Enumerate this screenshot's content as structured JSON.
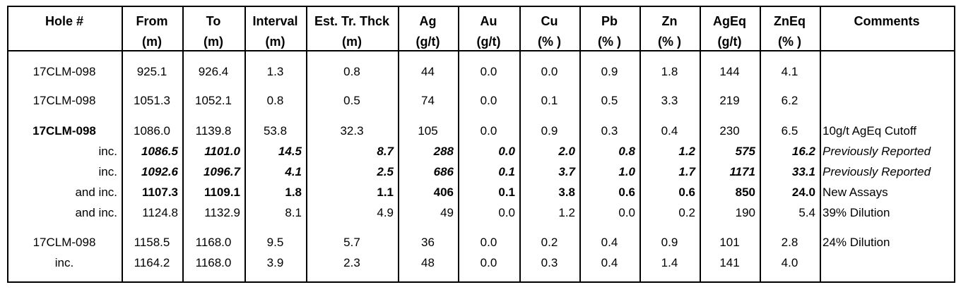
{
  "table": {
    "header": [
      [
        "Hole #"
      ],
      [
        "From",
        "(m)"
      ],
      [
        "To",
        "(m)"
      ],
      [
        "Interval",
        "(m)"
      ],
      [
        "Est. Tr. Thck",
        "(m)"
      ],
      [
        "Ag",
        "(g/t)"
      ],
      [
        "Au",
        "(g/t)"
      ],
      [
        "Cu",
        "(% )"
      ],
      [
        "Pb",
        "(% )"
      ],
      [
        "Zn",
        "(% )"
      ],
      [
        "AgEq",
        "(g/t)"
      ],
      [
        "ZnEq",
        "(% )"
      ],
      [
        "Comments"
      ]
    ],
    "rows": [
      [
        "17CLM-098",
        "925.1",
        "926.4",
        "1.3",
        "0.8",
        "44",
        "0.0",
        "0.0",
        "0.9",
        "1.8",
        "144",
        "4.1"
      ],
      [
        "17CLM-098",
        "1051.3",
        "1052.1",
        "0.8",
        "0.5",
        "74",
        "0.0",
        "0.1",
        "0.5",
        "3.3",
        "219",
        "6.2"
      ],
      [
        "17CLM-098",
        "1086.0",
        "1139.8",
        "53.8",
        "32.3",
        "105",
        "0.0",
        "0.9",
        "0.3",
        "0.4",
        "230",
        "6.5",
        "10g/t AgEq Cutoff"
      ],
      [
        "inc.",
        "1086.5",
        "1101.0",
        "14.5",
        "8.7",
        "288",
        "0.0",
        "2.0",
        "0.8",
        "1.2",
        "575",
        "16.2",
        "Previously Reported"
      ],
      [
        "inc.",
        "1092.6",
        "1096.7",
        "4.1",
        "2.5",
        "686",
        "0.1",
        "3.7",
        "1.0",
        "1.7",
        "1171",
        "33.1",
        "Previously Reported"
      ],
      [
        "and inc.",
        "1107.3",
        "1109.1",
        "1.8",
        "1.1",
        "406",
        "0.1",
        "3.8",
        "0.6",
        "0.6",
        "850",
        "24.0",
        "New Assays"
      ],
      [
        "and inc.",
        "1124.8",
        "1132.9",
        "8.1",
        "4.9",
        "49",
        "0.0",
        "1.2",
        "0.0",
        "0.2",
        "190",
        "5.4",
        "39% Dilution"
      ],
      [
        "17CLM-098",
        "1158.5",
        "1168.0",
        "9.5",
        "5.7",
        "36",
        "0.0",
        "0.2",
        "0.4",
        "0.9",
        "101",
        "2.8",
        "24% Dilution"
      ],
      [
        "inc.",
        "1164.2",
        "1168.0",
        "3.9",
        "2.3",
        "48",
        "0.0",
        "0.3",
        "0.4",
        "1.4",
        "141",
        "4.0"
      ]
    ]
  }
}
